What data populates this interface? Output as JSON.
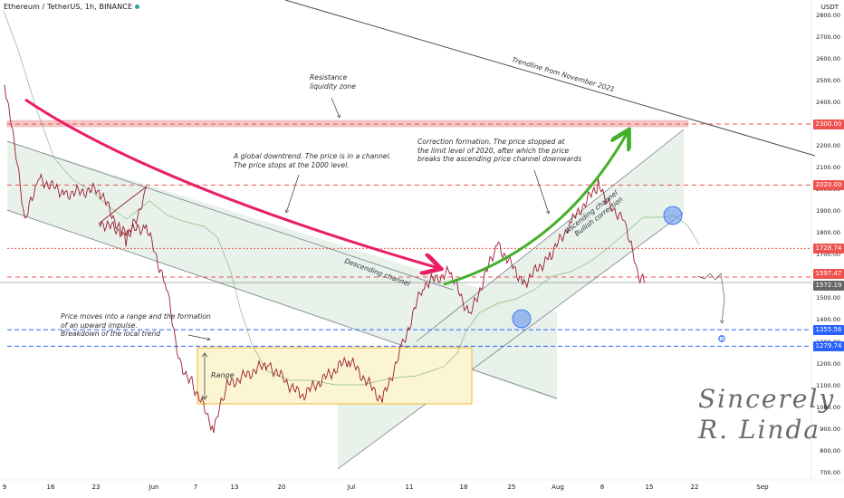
{
  "header": {
    "title": "Ethereum / TetherUS, 1h, BINANCE",
    "currency": "USDT"
  },
  "annotations": {
    "resistance": "Resistance\nliquidity zone",
    "global_downtrend": "A global downtrend. The price is in a channel.\nThe price stops at the 1000 level.",
    "correction": "Correction formation. The price stopped at\nthe limit level of 2020, after which the price\nbreaks the ascending price channel downwards",
    "range_impulse": "Price moves into a range and the formation\nof an upward impulse.\nBreakdown of the local trend",
    "range_label": "Range",
    "descending_channel": "Descending channel",
    "ascending_channel": "Ascending channel\nBullish correction",
    "trendline": "Trendline from November 2021"
  },
  "signature": "Sincerely\nR. Linda",
  "colors": {
    "price_red": "#ef5350",
    "price_green": "#26a69a",
    "candle": "#9b1c2e",
    "blue_level": "#2962ff",
    "channel_fill": "#e2efe6",
    "range_fill": "#fbf5d2",
    "range_border": "#f0a500",
    "arrow_red": "#e91e63",
    "arrow_green": "#43b02a",
    "ma": "#7cb66a",
    "trendline": "#4a4f5a"
  },
  "chart_data": {
    "type": "line",
    "title": "Ethereum / TetherUS, 1h, BINANCE",
    "ylabel": "USDT",
    "ylim": [
      670,
      2880
    ],
    "x_tick_labels": [
      "9",
      "16",
      "23",
      "Jun",
      "7",
      "13",
      "20",
      "Jul",
      "11",
      "18",
      "25",
      "Aug",
      "8",
      "15",
      "22",
      "Sep"
    ],
    "y_tick_labels": [
      "2800.00",
      "2700.00",
      "2600.00",
      "2500.00",
      "2400.00",
      "2300.00",
      "2200.00",
      "2100.00",
      "2000.00",
      "1900.00",
      "1800.00",
      "1700.00",
      "1600.00",
      "1500.00",
      "1400.00",
      "1300.00",
      "1200.00",
      "1100.00",
      "1000.00",
      "900.00",
      "800.00",
      "700.00"
    ],
    "price_points": [
      {
        "x": "May 9",
        "y": 2480
      },
      {
        "x": "May 10",
        "y": 2320
      },
      {
        "x": "May 12",
        "y": 1850
      },
      {
        "x": "May 14",
        "y": 2050
      },
      {
        "x": "May 18",
        "y": 1980
      },
      {
        "x": "May 23",
        "y": 2000
      },
      {
        "x": "May 27",
        "y": 1760
      },
      {
        "x": "May 30",
        "y": 1980
      },
      {
        "x": "Jun 1",
        "y": 1850
      },
      {
        "x": "Jun 5",
        "y": 1800
      },
      {
        "x": "Jun 8",
        "y": 1830
      },
      {
        "x": "Jun 11",
        "y": 1550
      },
      {
        "x": "Jun 13",
        "y": 1200
      },
      {
        "x": "Jun 15",
        "y": 1100
      },
      {
        "x": "Jun 18",
        "y": 900
      },
      {
        "x": "Jun 20",
        "y": 1100
      },
      {
        "x": "Jun 26",
        "y": 1200
      },
      {
        "x": "Jul 1",
        "y": 1050
      },
      {
        "x": "Jul 8",
        "y": 1220
      },
      {
        "x": "Jul 13",
        "y": 1030
      },
      {
        "x": "Jul 16",
        "y": 1280
      },
      {
        "x": "Jul 19",
        "y": 1560
      },
      {
        "x": "Jul 23",
        "y": 1620
      },
      {
        "x": "Jul 26",
        "y": 1420
      },
      {
        "x": "Jul 30",
        "y": 1750
      },
      {
        "x": "Aug 3",
        "y": 1570
      },
      {
        "x": "Aug 7",
        "y": 1700
      },
      {
        "x": "Aug 10",
        "y": 1850
      },
      {
        "x": "Aug 14",
        "y": 2020
      },
      {
        "x": "Aug 16",
        "y": 1920
      },
      {
        "x": "Aug 18",
        "y": 1850
      },
      {
        "x": "Aug 20",
        "y": 1590
      },
      {
        "x": "Aug 21",
        "y": 1572
      }
    ],
    "levels": [
      {
        "label": "2300.00",
        "value": 2300,
        "color": "#ef5350"
      },
      {
        "label": "2020.00",
        "value": 2020,
        "color": "#ef5350"
      },
      {
        "label": "1728.74",
        "value": 1728.74,
        "color": "#ef5350"
      },
      {
        "label": "1597.47",
        "value": 1597.47,
        "color": "#ef5350"
      },
      {
        "label": "1572.19",
        "value": 1572.19,
        "color": "#666666"
      },
      {
        "label": "1355.56",
        "value": 1355.56,
        "color": "#2962ff"
      },
      {
        "label": "1279.74",
        "value": 1279.74,
        "color": "#2962ff"
      }
    ],
    "grid": false
  }
}
